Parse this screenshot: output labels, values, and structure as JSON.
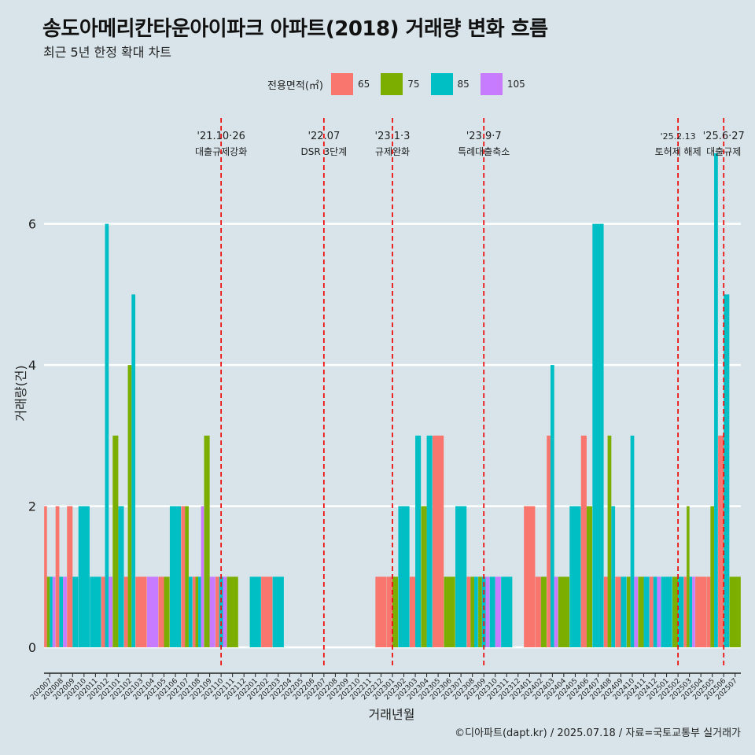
{
  "header": {
    "title": "송도아메리칸타운아이파크 아파트(2018) 거래량 변화 흐름",
    "subtitle": "최근 5년 한정 확대 차트"
  },
  "legend": {
    "title": "전용면적(㎡)",
    "items": [
      {
        "label": "65",
        "color": "#f8766d"
      },
      {
        "label": "75",
        "color": "#7cae00"
      },
      {
        "label": "85",
        "color": "#00bfc4"
      },
      {
        "label": "105",
        "color": "#c77cff"
      }
    ]
  },
  "caption": "©디아파트(dapt.kr) / 2025.07.18 / 자료=국토교통부 실거래가",
  "chart_data": {
    "type": "bar",
    "xlabel": "거래년월",
    "ylabel": "거래량(건)",
    "ylim": [
      -0.3,
      7.5
    ],
    "yticks": [
      0,
      2,
      4,
      6
    ],
    "categories": [
      "202007",
      "202008",
      "202009",
      "202010",
      "202011",
      "202012",
      "202101",
      "202102",
      "202103",
      "202104",
      "202105",
      "202106",
      "202107",
      "202108",
      "202109",
      "202110",
      "202111",
      "202112",
      "202201",
      "202202",
      "202203",
      "202204",
      "202205",
      "202206",
      "202207",
      "202208",
      "202209",
      "202210",
      "202211",
      "202212",
      "202301",
      "202302",
      "202303",
      "202304",
      "202305",
      "202306",
      "202307",
      "202308",
      "202309",
      "202310",
      "202311",
      "202312",
      "202401",
      "202402",
      "202403",
      "202404",
      "202405",
      "202406",
      "202407",
      "202408",
      "202409",
      "202410",
      "202411",
      "202412",
      "202501",
      "202502",
      "202503",
      "202504",
      "202505",
      "202506",
      "202507"
    ],
    "series": [
      {
        "name": "65",
        "values": {
          "202007": 2,
          "202008": 2,
          "202009": 2,
          "202012": 1,
          "202102": 1,
          "202103": 1,
          "202105": 1,
          "202107": 2,
          "202108": 1,
          "202110": 1,
          "202202": 1,
          "202212": 1,
          "202301": 1,
          "202303": 1,
          "202305": 3,
          "202308": 1,
          "202401": 2,
          "202402": 1,
          "202403": 3,
          "202406": 3,
          "202408": 1,
          "202409": 1,
          "202412": 1,
          "202503": 1,
          "202504": 1,
          "202505": 1,
          "202506": 3
        }
      },
      {
        "name": "75",
        "values": {
          "202007": 1,
          "202101": 3,
          "202102": 4,
          "202105": 1,
          "202107": 2,
          "202108": 1,
          "202109": 3,
          "202111": 1,
          "202301": 1,
          "202304": 2,
          "202306": 1,
          "202308": 1,
          "202309": 1,
          "202402": 1,
          "202404": 1,
          "202406": 2,
          "202408": 3,
          "202410": 1,
          "202411": 1,
          "202502": 1,
          "202503": 2,
          "202505": 2,
          "202507": 1
        }
      },
      {
        "name": "85",
        "values": {
          "202007": 1,
          "202008": 1,
          "202009": 1,
          "202010": 2,
          "202011": 1,
          "202012": 6,
          "202101": 2,
          "202102": 5,
          "202106": 2,
          "202107": 1,
          "202108": 1,
          "202110": 1,
          "202201": 1,
          "202203": 1,
          "202302": 2,
          "202303": 3,
          "202304": 3,
          "202307": 2,
          "202308": 1,
          "202309": 1,
          "202310": 1,
          "202311": 1,
          "202403": 4,
          "202405": 2,
          "202407": 6,
          "202408": 2,
          "202409": 1,
          "202410": 3,
          "202411": 1,
          "202412": 1,
          "202501": 1,
          "202502": 1,
          "202503": 1,
          "202505": 7,
          "202506": 5
        }
      },
      {
        "name": "105",
        "values": {
          "202007": 1,
          "202008": 1,
          "202012": 1,
          "202104": 1,
          "202108": 2,
          "202109": 1,
          "202110": 1,
          "202309": 1,
          "202310": 1,
          "202403": 1,
          "202410": 1,
          "202412": 1,
          "202503": 1
        }
      }
    ],
    "events": [
      {
        "month": "202110",
        "date": "'21.10·26",
        "label": "대출규제강화"
      },
      {
        "month": "202207",
        "date": "'22.07",
        "label": "DSR 3단계"
      },
      {
        "month": "202301",
        "date": "'23.1·3",
        "label": "규제완화"
      },
      {
        "month": "202309",
        "date": "'23.9·7",
        "label": "특례대출축소"
      },
      {
        "month": "202502",
        "date": "'25.2.13",
        "label": "토허제 해제"
      },
      {
        "month": "202506",
        "date": "'25.6·27",
        "label": "대출규제"
      }
    ]
  }
}
